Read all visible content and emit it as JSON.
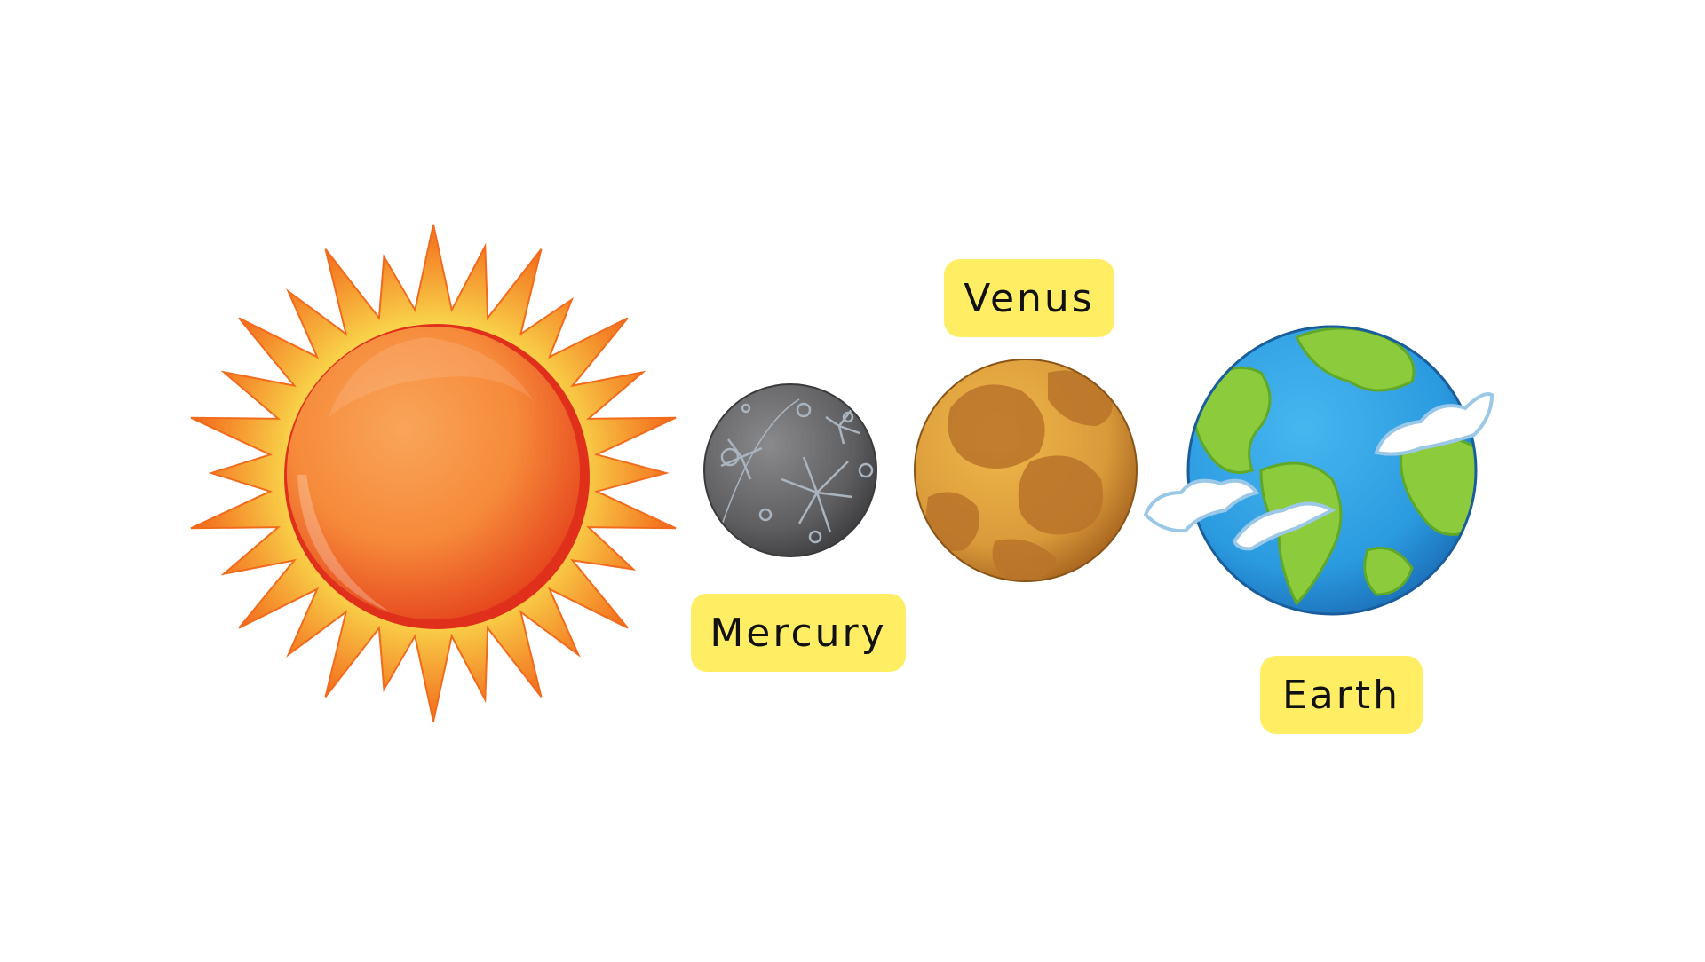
{
  "labels": {
    "venus": "Venus",
    "mercury": "Mercury",
    "earth": "Earth"
  },
  "icons": {
    "sun": "sun-icon",
    "mercury": "mercury-planet-icon",
    "venus": "venus-planet-icon",
    "earth": "earth-planet-icon"
  },
  "colors": {
    "label_background": "#ffee63",
    "sun_body": "#f68a3a",
    "sun_rays": "#f26a1c",
    "sun_rim": "#e0301c",
    "mercury": "#6e6e70",
    "venus": "#d99a3a",
    "earth_ocean": "#2b9be0",
    "earth_land": "#8ccc3c",
    "cloud": "#ffffff"
  }
}
